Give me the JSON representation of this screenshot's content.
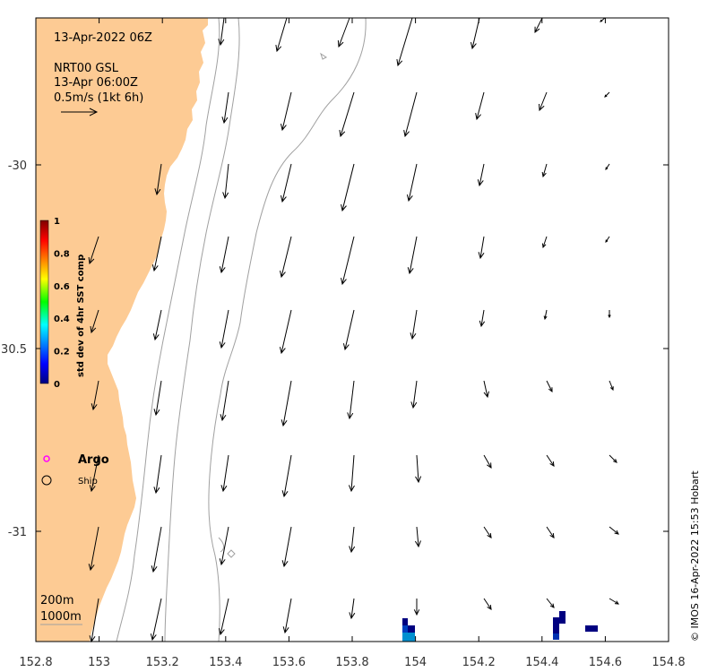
{
  "header": {
    "date_label": "13-Apr-2022 06Z",
    "product": "NRT00 GSL",
    "product_time": "13-Apr 06:00Z",
    "scale_label": "0.5m/s (1kt 6h)"
  },
  "axes": {
    "x_ticks": [
      "152.8",
      "153",
      "153.2",
      "153.4",
      "153.6",
      "153.8",
      "154",
      "154.2",
      "154.4",
      "154.6",
      "154.8"
    ],
    "y_ticks": [
      "-30",
      "30.5",
      "-31"
    ]
  },
  "colorbar": {
    "title": "std dev of 4hr SST comp",
    "ticks": [
      "1",
      "0.8",
      "0.6",
      "0.4",
      "0.2",
      "0"
    ]
  },
  "legend": {
    "argo_label": "Argo",
    "ship_label": "Ship",
    "argo_color": "#ff00ff"
  },
  "isobaths": {
    "shallow_label": "200m",
    "deep_label": "1000m"
  },
  "credit": "© IMOS 16-Apr-2022 15:53 Hobart",
  "colors": {
    "land": "#fdcb94",
    "isobath": "#a0a0a0",
    "arrow": "#000000"
  },
  "map_data": {
    "lon_range": [
      152.8,
      154.8
    ],
    "lat_range": [
      -31.3,
      -29.6
    ],
    "current_vectors_note": "grid of current arrows, mostly southward flow near coast, weaker south-eastward offshore",
    "current_vectors": [
      {
        "lon": 153.4,
        "lat": -29.6,
        "u": 0.03,
        "v": -0.35
      },
      {
        "lon": 153.6,
        "lat": -29.6,
        "u": 0.05,
        "v": -0.55
      },
      {
        "lon": 153.8,
        "lat": -29.6,
        "u": 0.06,
        "v": -0.35
      },
      {
        "lon": 154.0,
        "lat": -29.6,
        "u": 0.1,
        "v": -0.75
      },
      {
        "lon": 154.2,
        "lat": -29.6,
        "u": 0.05,
        "v": -0.45
      },
      {
        "lon": 154.4,
        "lat": -29.6,
        "u": 0.04,
        "v": -0.25
      },
      {
        "lon": 154.6,
        "lat": -29.6,
        "u": 0.03,
        "v": -0.1
      }
    ]
  }
}
